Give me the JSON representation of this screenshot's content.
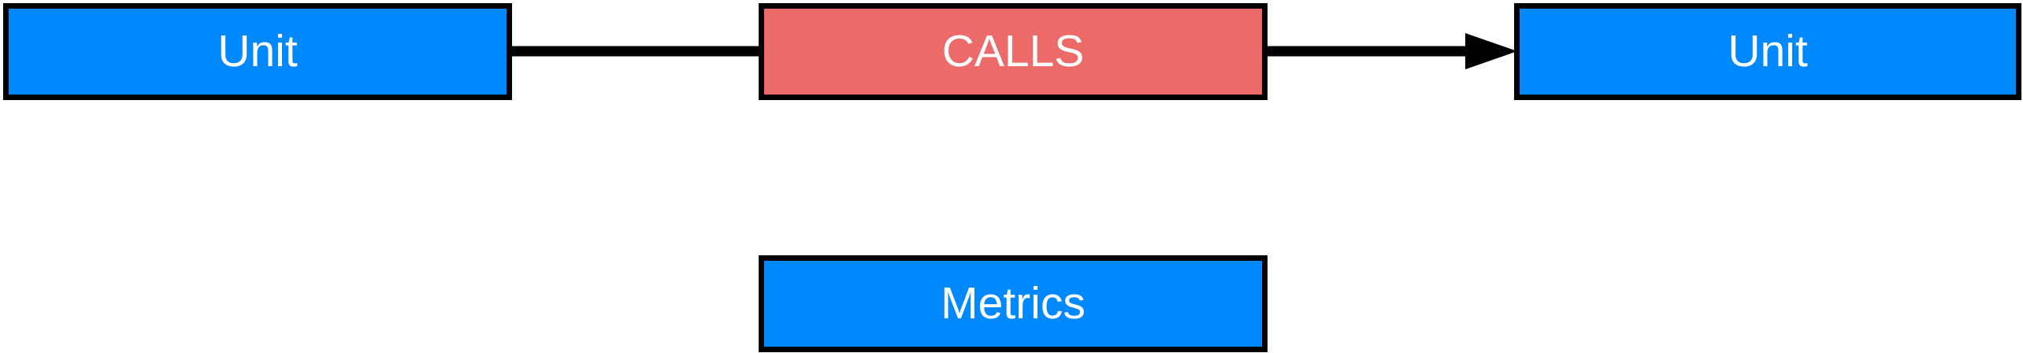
{
  "nodes": {
    "source_unit": {
      "label": "Unit",
      "color": "#0088ff"
    },
    "calls": {
      "label": "CALLS",
      "color": "#ec6b69"
    },
    "target_unit": {
      "label": "Unit",
      "color": "#0088ff"
    },
    "metrics": {
      "label": "Metrics",
      "color": "#0088ff"
    }
  },
  "edges": [
    {
      "from": "source_unit",
      "to": "calls",
      "arrow": "none"
    },
    {
      "from": "calls",
      "to": "target_unit",
      "arrow": "end"
    }
  ],
  "colors": {
    "border": "#000000",
    "edge": "#000000",
    "text": "#ffffff"
  }
}
